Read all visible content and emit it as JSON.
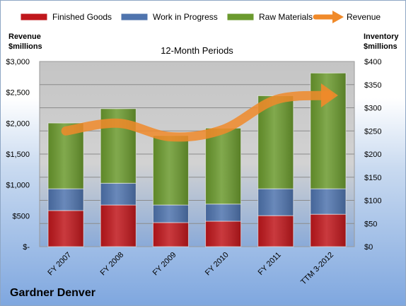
{
  "company_label": "Gardner Denver",
  "chart_data": {
    "type": "bar",
    "stacked": true,
    "title": "12-Month Periods",
    "ylabel_left": [
      "Revenue",
      "$millions"
    ],
    "ylabel_right": [
      "Inventory",
      "$millions"
    ],
    "categories": [
      "FY 2007",
      "FY 2008",
      "FY 2009",
      "FY 2010",
      "FY 2011",
      "TTM 3-2012"
    ],
    "left_axis": {
      "min": 0,
      "max": 3000,
      "ticks": [
        "$-",
        "$500",
        "$1,000",
        "$1,500",
        "$2,000",
        "$2,500",
        "$3,000"
      ]
    },
    "right_axis": {
      "min": 0,
      "max": 400,
      "ticks": [
        "$0",
        "$50",
        "$100",
        "$150",
        "$200",
        "$250",
        "$300",
        "$350",
        "$400"
      ]
    },
    "series": [
      {
        "name": "Finished Goods",
        "color": "#c0171c",
        "axis": "right",
        "values": [
          78,
          90,
          52,
          55,
          67,
          70
        ]
      },
      {
        "name": "Work in Progress",
        "color": "#4f74ae",
        "axis": "right",
        "values": [
          47,
          47,
          38,
          37,
          58,
          55
        ]
      },
      {
        "name": "Raw Materials",
        "color": "#6b9a2e",
        "axis": "right",
        "values": [
          142,
          161,
          150,
          164,
          201,
          250
        ]
      }
    ],
    "line_series": {
      "name": "Revenue",
      "color": "#f08a2a",
      "axis": "left",
      "values": [
        1875,
        2000,
        1780,
        1900,
        2380,
        2450
      ]
    },
    "legend_position": "top",
    "grid": true
  }
}
